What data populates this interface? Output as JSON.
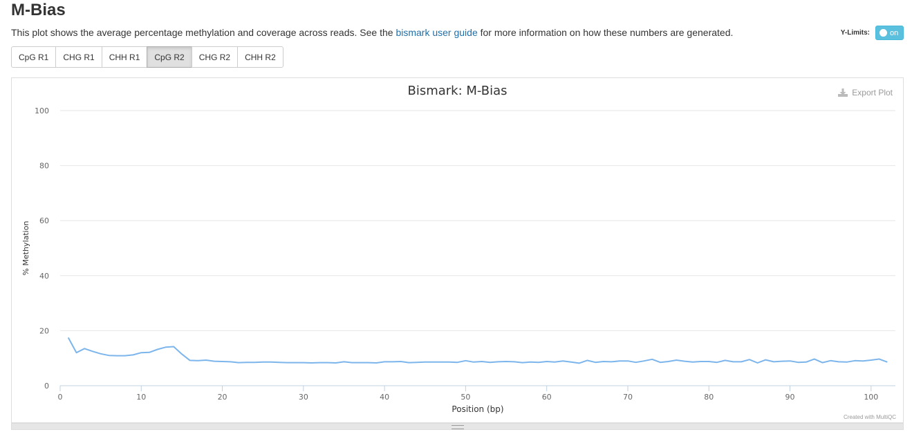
{
  "page": {
    "title": "M-Bias",
    "description_pre": "This plot shows the average percentage methylation and coverage across reads. See the ",
    "description_link": "bismark user guide",
    "description_post": " for more information on how these numbers are generated."
  },
  "ylimits": {
    "label": "Y-Limits:",
    "toggle_text": "on"
  },
  "tabs": [
    {
      "label": "CpG R1",
      "active": false
    },
    {
      "label": "CHG R1",
      "active": false
    },
    {
      "label": "CHH R1",
      "active": false
    },
    {
      "label": "CpG R2",
      "active": true
    },
    {
      "label": "CHG R2",
      "active": false
    },
    {
      "label": "CHH R2",
      "active": false
    }
  ],
  "plot": {
    "export_label": "Export Plot",
    "credit": "Created with MultiQC"
  },
  "colors": {
    "line": "#7cb5ec",
    "link": "#1f6fa8",
    "toggle": "#5bc0de"
  },
  "chart_data": {
    "type": "line",
    "title": "Bismark: M-Bias",
    "xlabel": "Position (bp)",
    "ylabel": "% Methylation",
    "xlim": [
      0,
      103
    ],
    "ylim": [
      0,
      100
    ],
    "xticks": [
      0,
      10,
      20,
      30,
      40,
      50,
      60,
      70,
      80,
      90,
      100
    ],
    "yticks": [
      0,
      20,
      40,
      60,
      80,
      100
    ],
    "grid": true,
    "series": [
      {
        "x": [
          1,
          2,
          3,
          4,
          5,
          6,
          7,
          8,
          9,
          10,
          11,
          12,
          13,
          14,
          15,
          16,
          17,
          18,
          19,
          20,
          21,
          22,
          23,
          24,
          25,
          26,
          27,
          28,
          29,
          30,
          31,
          32,
          33,
          34,
          35,
          36,
          37,
          38,
          39,
          40,
          41,
          42,
          43,
          44,
          45,
          46,
          47,
          48,
          49,
          50,
          51,
          52,
          53,
          54,
          55,
          56,
          57,
          58,
          59,
          60,
          61,
          62,
          63,
          64,
          65,
          66,
          67,
          68,
          69,
          70,
          71,
          72,
          73,
          74,
          75,
          76,
          77,
          78,
          79,
          80,
          81,
          82,
          83,
          84,
          85,
          86,
          87,
          88,
          89,
          90,
          91,
          92,
          93,
          94,
          95,
          96,
          97,
          98,
          99,
          100,
          101,
          102
        ],
        "values": [
          17.5,
          12.0,
          13.5,
          12.5,
          11.6,
          11.0,
          10.9,
          10.9,
          11.2,
          12.0,
          12.1,
          13.2,
          14.0,
          14.2,
          11.5,
          9.2,
          9.1,
          9.3,
          8.9,
          8.8,
          8.7,
          8.4,
          8.5,
          8.5,
          8.6,
          8.6,
          8.5,
          8.4,
          8.4,
          8.4,
          8.3,
          8.4,
          8.4,
          8.3,
          8.7,
          8.4,
          8.4,
          8.4,
          8.3,
          8.7,
          8.7,
          8.8,
          8.4,
          8.5,
          8.6,
          8.6,
          8.6,
          8.6,
          8.5,
          9.1,
          8.6,
          8.8,
          8.5,
          8.7,
          8.8,
          8.7,
          8.4,
          8.6,
          8.5,
          8.8,
          8.6,
          9.0,
          8.6,
          8.2,
          9.2,
          8.5,
          8.8,
          8.7,
          9.0,
          9.0,
          8.5,
          9.0,
          9.6,
          8.5,
          8.8,
          9.3,
          8.9,
          8.6,
          8.8,
          8.8,
          8.5,
          9.2,
          8.7,
          8.7,
          9.5,
          8.3,
          9.4,
          8.7,
          8.9,
          9.0,
          8.5,
          8.6,
          9.7,
          8.4,
          9.1,
          8.7,
          8.6,
          9.1,
          9.0,
          9.3,
          9.7,
          8.6
        ]
      }
    ]
  }
}
